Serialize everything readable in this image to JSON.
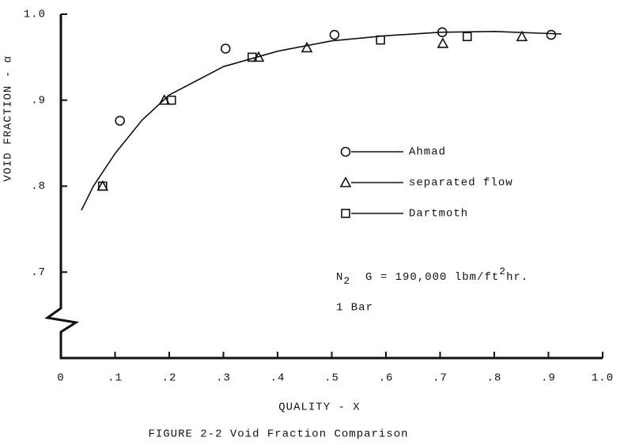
{
  "chart_data": {
    "type": "scatter",
    "title": "FIGURE 2-2  Void Fraction Comparison",
    "x_label": "QUALITY - X",
    "y_label": "VOID FRACTION - α",
    "xlim": [
      0,
      1.0
    ],
    "ylim": [
      0.6,
      1.0
    ],
    "xticks": [
      0,
      {
        "value": 0.1,
        "label": ".1"
      },
      {
        "value": 0.2,
        "label": ".2"
      },
      {
        "value": 0.3,
        "label": ".3"
      },
      {
        "value": 0.4,
        "label": ".4"
      },
      {
        "value": 0.5,
        "label": ".5"
      },
      {
        "value": 0.6,
        "label": ".6"
      },
      {
        "value": 0.7,
        "label": ".7"
      },
      {
        "value": 0.8,
        "label": ".8"
      },
      {
        "value": 0.9,
        "label": ".9"
      },
      {
        "value": 1.0,
        "label": "1.0"
      }
    ],
    "yticks": [
      {
        "value": 0.7,
        "label": ".7"
      },
      {
        "value": 0.8,
        "label": ".8"
      },
      {
        "value": 0.9,
        "label": ".9"
      },
      {
        "value": 1.0,
        "label": "1.0"
      }
    ],
    "series": [
      {
        "name": "Ahmad",
        "marker": "circle",
        "color": "#111111",
        "x": [
          0.109,
          0.304,
          0.505,
          0.704,
          0.905
        ],
        "values": [
          0.876,
          0.96,
          0.976,
          0.979,
          0.976
        ]
      },
      {
        "name": "separated flow",
        "marker": "triangle",
        "color": "#111111",
        "x": [
          0.077,
          0.191,
          0.365,
          0.454,
          0.705,
          0.851
        ],
        "values": [
          0.8,
          0.9,
          0.95,
          0.961,
          0.966,
          0.974
        ]
      },
      {
        "name": "Dartmoth",
        "marker": "square",
        "color": "#111111",
        "x": [
          0.077,
          0.204,
          0.353,
          0.59,
          0.75
        ],
        "values": [
          0.8,
          0.9,
          0.95,
          0.97,
          0.974
        ]
      }
    ],
    "curve": {
      "color": "#111111",
      "x": [
        0.038,
        0.06,
        0.1,
        0.15,
        0.2,
        0.3,
        0.4,
        0.5,
        0.6,
        0.7,
        0.8,
        0.924
      ],
      "values": [
        0.772,
        0.8,
        0.838,
        0.877,
        0.906,
        0.939,
        0.957,
        0.969,
        0.975,
        0.979,
        0.98,
        0.977
      ]
    },
    "annotation": {
      "parts": [
        "N",
        "2",
        "  G = 190,000 lbm/ft",
        "2",
        "hr."
      ]
    },
    "annotation2": "1 Bar"
  }
}
